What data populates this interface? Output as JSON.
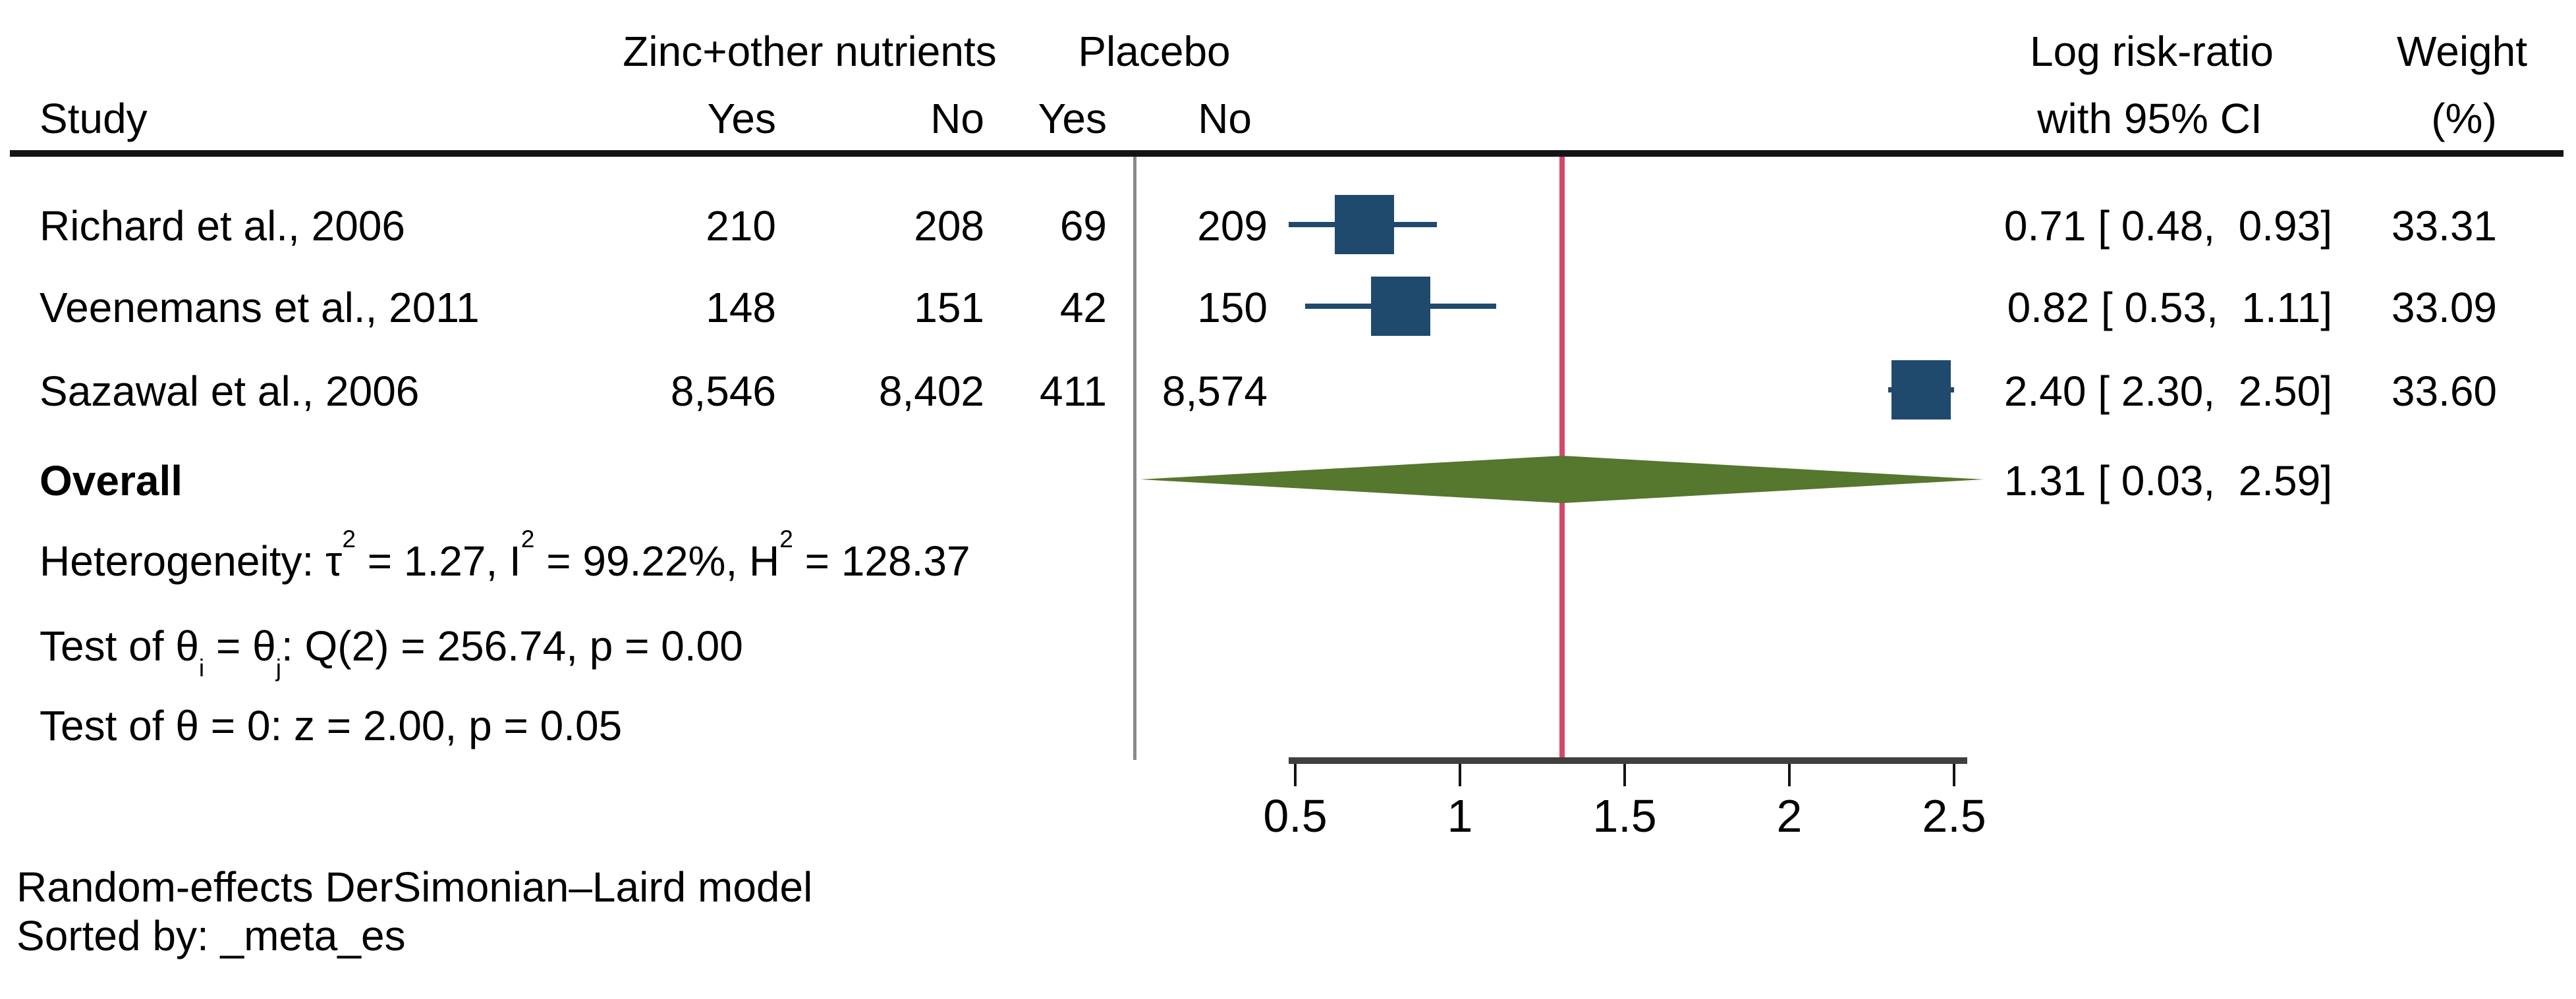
{
  "header": {
    "group_treatment": "Zinc+other nutrients",
    "group_control": "Placebo",
    "col_study": "Study",
    "treatment_yes": "Yes",
    "treatment_no": "No",
    "control_yes": "Yes",
    "control_no": "No",
    "effect_line1": "Log risk-ratio",
    "effect_line2": "with 95% CI",
    "weight_line1": "Weight",
    "weight_line2": "(%)"
  },
  "chart_data": {
    "type": "forest",
    "effect_measure": "Log risk-ratio",
    "x_axis": {
      "tick_values": [
        0.5,
        1,
        1.5,
        2,
        2.5
      ],
      "tick_labels": [
        "0.5",
        "1",
        "1.5",
        "2",
        "2.5"
      ],
      "range": [
        0.5,
        2.5
      ],
      "ref_line_value": 1.31
    },
    "studies": [
      {
        "label": "Richard et al., 2006",
        "zinc_yes": "210",
        "zinc_no": "208",
        "placebo_yes": "69",
        "placebo_no": "209",
        "estimate": 0.71,
        "ci_low": 0.48,
        "ci_high": 0.93,
        "ci_text": "0.71 [ 0.48,  0.93]",
        "weight": "33.31"
      },
      {
        "label": "Veenemans et al., 2011",
        "zinc_yes": "148",
        "zinc_no": "151",
        "placebo_yes": "42",
        "placebo_no": "150",
        "estimate": 0.82,
        "ci_low": 0.53,
        "ci_high": 1.11,
        "ci_text": "0.82 [ 0.53,  1.11]",
        "weight": "33.09"
      },
      {
        "label": "Sazawal et al., 2006",
        "zinc_yes": "8,546",
        "zinc_no": "8,402",
        "placebo_yes": "411",
        "placebo_no": "8,574",
        "estimate": 2.4,
        "ci_low": 2.3,
        "ci_high": 2.5,
        "ci_text": "2.40 [ 2.30,  2.50]",
        "weight": "33.60"
      }
    ],
    "overall": {
      "label": "Overall",
      "estimate": 1.31,
      "ci_low": 0.03,
      "ci_high": 2.59,
      "ci_text": "1.31 [ 0.03,  2.59]"
    },
    "heterogeneity_html": "Heterogeneity: τ<sup>2</sup> = 1.27, I<sup>2</sup> = 99.22%, H<sup>2</sup> = 128.37",
    "test_thetas_html": "Test of θ<sub>i</sub> = θ<sub>j</sub>: Q(2) = 256.74, p = 0.00",
    "test_zero_html": "Test of θ = 0: z = 2.00, p = 0.05"
  },
  "footer": {
    "model": "Random-effects DerSimonian–Laird model",
    "sorted_by": "Sorted by: _meta_es"
  },
  "colors": {
    "marker_navy": "#1F4A6E",
    "diamond_green": "#55772E",
    "ref_line_red": "#D6486B",
    "divider_gray": "#8A8A8A",
    "axis_gray": "#3F3F3F",
    "rule_black": "#141414"
  }
}
